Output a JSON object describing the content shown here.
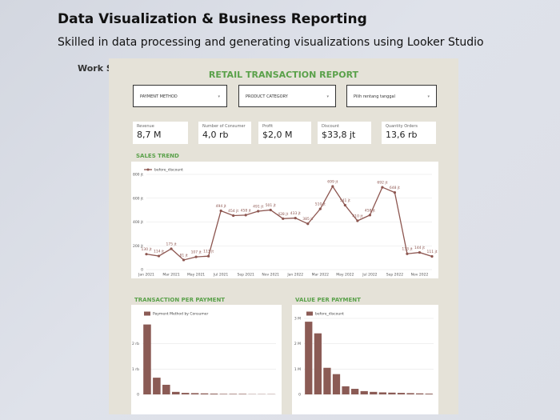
{
  "header": {
    "title": "Data Visualization & Business Reporting",
    "subtitle": "Skilled in data processing and generating visualizations using Looker Studio",
    "section": "Work Samples"
  },
  "dashboard": {
    "title": "RETAIL TRANSACTION REPORT",
    "filters": [
      "PAYMENT METHOD",
      "PRODUCT CATEGORY",
      "Pilih rentang tanggal"
    ],
    "scorecards": [
      {
        "label": "Revenue",
        "value": "8,7 M"
      },
      {
        "label": "Number of Consumer",
        "value": "4,0 rb"
      },
      {
        "label": "Profit",
        "value": "$2,0 M"
      },
      {
        "label": "Discount",
        "value": "$33,8 jt"
      },
      {
        "label": "Quantity Orders",
        "value": "13,6 rb"
      }
    ]
  },
  "chart_data": [
    {
      "type": "line",
      "title": "SALES TREND",
      "categories": [
        "Jan 2021",
        null,
        "Mar 2021",
        null,
        "May 2021",
        null,
        "Jul 2021",
        null,
        "Sep 2021",
        null,
        "Nov 2021",
        null,
        "Jan 2022",
        null,
        "Mar 2022",
        null,
        "May 2022",
        null,
        "Jul 2022",
        null,
        "Sep 2022",
        null,
        "Nov 2022",
        null
      ],
      "series": [
        {
          "name": "before_discount",
          "color": "#8d5650",
          "values": [
            130,
            114,
            175,
            81,
            107,
            113,
            494,
            454,
            458,
            491,
            501,
            428,
            433,
            385,
            510,
            699,
            541,
            410,
            458,
            692,
            648,
            133,
            144,
            111
          ],
          "value_labels": [
            "130 jt",
            "114 jt",
            "175 jt",
            "81 jt",
            "107 jt",
            "113 jt",
            "494 jt",
            "454 jt",
            "458 jt",
            "491 jt",
            "501 jt",
            "428 jt",
            "433 jt",
            "385 jt",
            "510 jt",
            "699 jt",
            "541 jt",
            "410 jt",
            "458 jt",
            "692 jt",
            "648 jt",
            "133 jt",
            "144 jt",
            "111 jt"
          ]
        }
      ],
      "ylim": [
        0,
        800
      ],
      "yticks": [
        0,
        {
          "value": 200,
          "label": "200 jt"
        },
        {
          "value": 400,
          "label": "400 jt"
        },
        {
          "value": 600,
          "label": "600 jt"
        },
        {
          "value": 800,
          "label": "800 jt"
        }
      ],
      "grid": true
    },
    {
      "type": "bar",
      "title": "TRANSACTION PER PAYMENT",
      "categories": [
        null,
        null,
        null,
        null,
        null,
        null,
        null,
        null,
        null,
        null,
        null,
        null,
        null,
        null
      ],
      "series": [
        {
          "name": "Payment Method by Consumer",
          "color": "#8b5b55",
          "values": [
            2.76,
            0.66,
            0.38,
            0.1,
            0.06,
            0.05,
            0.04,
            0.03,
            0.02,
            0.02,
            0.02,
            0.01,
            0.01,
            0.01
          ]
        }
      ],
      "ylim": [
        0,
        3
      ],
      "yticks": [
        0,
        {
          "value": 1,
          "label": "1 rb"
        },
        {
          "value": 2,
          "label": "2 rb"
        }
      ],
      "grid": true
    },
    {
      "type": "bar",
      "title": "VALUE PER PAYMENT",
      "categories": [
        null,
        null,
        null,
        null,
        null,
        null,
        null,
        null,
        null,
        null,
        null,
        null,
        null,
        null
      ],
      "series": [
        {
          "name": "before_discount",
          "color": "#8b5b55",
          "values": [
            2.87,
            2.41,
            1.05,
            0.8,
            0.32,
            0.22,
            0.13,
            0.1,
            0.08,
            0.07,
            0.06,
            0.05,
            0.04,
            0.03
          ]
        }
      ],
      "ylim": [
        0,
        3
      ],
      "yticks": [
        0,
        {
          "value": 1,
          "label": "1 M"
        },
        {
          "value": 2,
          "label": "2 M"
        },
        {
          "value": 3,
          "label": "3 M"
        }
      ],
      "grid": true
    }
  ]
}
